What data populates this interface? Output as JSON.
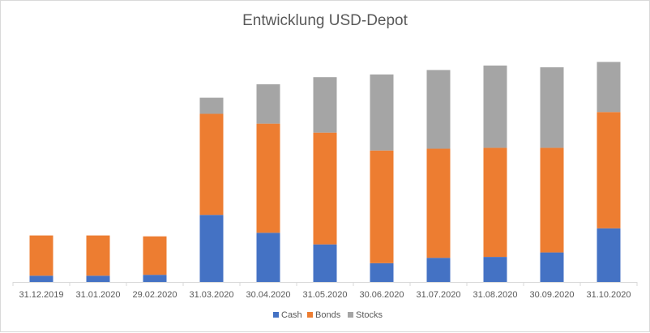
{
  "chart_data": {
    "type": "bar",
    "stacked": true,
    "title": "Entwicklung USD-Depot",
    "xlabel": "",
    "ylabel": "",
    "categories": [
      "31.12.2019",
      "31.01.2020",
      "29.02.2020",
      "31.03.2020",
      "30.04.2020",
      "31.05.2020",
      "30.06.2020",
      "31.07.2020",
      "31.08.2020",
      "30.09.2020",
      "31.10.2020"
    ],
    "series": [
      {
        "name": "Cash",
        "color": "#4472C4",
        "values": [
          7,
          7,
          8,
          75,
          55,
          42,
          21,
          27,
          28,
          33,
          60
        ]
      },
      {
        "name": "Bonds",
        "color": "#ED7D31",
        "values": [
          45,
          45,
          43,
          113,
          122,
          125,
          126,
          122,
          122,
          117,
          130
        ]
      },
      {
        "name": "Stocks",
        "color": "#A5A5A5",
        "values": [
          0,
          0,
          0,
          18,
          44,
          62,
          85,
          88,
          92,
          90,
          56
        ]
      }
    ],
    "ylim": [
      0,
      260
    ],
    "grid": false,
    "legend_position": "bottom"
  }
}
